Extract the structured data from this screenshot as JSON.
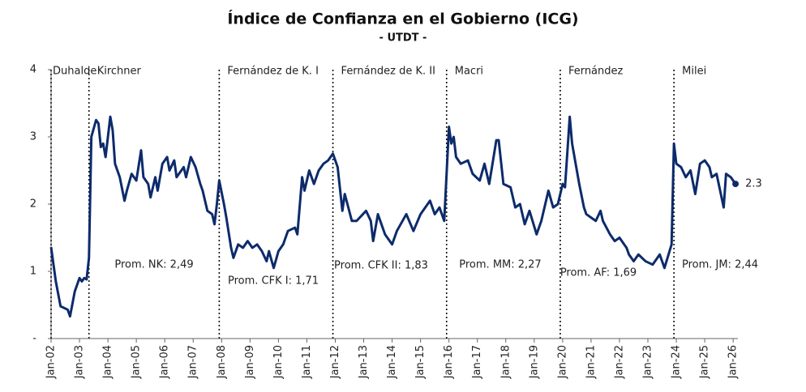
{
  "chart_data": {
    "type": "line",
    "title": "Índice de Confianza en el Gobierno (ICG)",
    "subtitle": "- UTDT -",
    "color": "#0d2b6b",
    "x": [
      "2002-01",
      "2002-03",
      "2002-05",
      "2002-08",
      "2002-09",
      "2002-11",
      "2003-01",
      "2003-02",
      "2003-03",
      "2003-04",
      "2003-05",
      "2003-06",
      "2003-08",
      "2003-09",
      "2003-10",
      "2003-11",
      "2003-12",
      "2004-02",
      "2004-03",
      "2004-04",
      "2004-06",
      "2004-08",
      "2004-09",
      "2004-11",
      "2005-01",
      "2005-03",
      "2005-04",
      "2005-06",
      "2005-07",
      "2005-09",
      "2005-10",
      "2005-12",
      "2006-02",
      "2006-03",
      "2006-05",
      "2006-06",
      "2006-09",
      "2006-10",
      "2006-12",
      "2007-02",
      "2007-04",
      "2007-05",
      "2007-06",
      "2007-07",
      "2007-09",
      "2007-10",
      "2007-11",
      "2007-12",
      "2008-02",
      "2008-03",
      "2008-05",
      "2008-06",
      "2008-08",
      "2008-10",
      "2008-12",
      "2009-02",
      "2009-04",
      "2009-06",
      "2009-08",
      "2009-09",
      "2009-11",
      "2010-01",
      "2010-03",
      "2010-05",
      "2010-08",
      "2010-09",
      "2010-11",
      "2010-12",
      "2011-02",
      "2011-04",
      "2011-06",
      "2011-08",
      "2011-10",
      "2011-12",
      "2012-02",
      "2012-04",
      "2012-05",
      "2012-08",
      "2012-10",
      "2013-02",
      "2013-04",
      "2013-05",
      "2013-07",
      "2013-10",
      "2014-01",
      "2014-03",
      "2014-07",
      "2014-10",
      "2015-01",
      "2015-05",
      "2015-07",
      "2015-09",
      "2015-11",
      "2016-01",
      "2016-02",
      "2016-03",
      "2016-04",
      "2016-06",
      "2016-09",
      "2016-11",
      "2017-02",
      "2017-04",
      "2017-06",
      "2017-09",
      "2017-10",
      "2017-12",
      "2018-03",
      "2018-05",
      "2018-07",
      "2018-09",
      "2018-11",
      "2019-02",
      "2019-04",
      "2019-07",
      "2019-09",
      "2019-11",
      "2020-01",
      "2020-02",
      "2020-04",
      "2020-05",
      "2020-07",
      "2020-08",
      "2020-10",
      "2020-11",
      "2021-01",
      "2021-03",
      "2021-05",
      "2021-06",
      "2021-09",
      "2021-11",
      "2022-01",
      "2022-04",
      "2022-05",
      "2022-07",
      "2022-09",
      "2022-12",
      "2023-03",
      "2023-06",
      "2023-08",
      "2023-11",
      "2023-12",
      "2024-01",
      "2024-03",
      "2024-05",
      "2024-07",
      "2024-09",
      "2024-11",
      "2025-01",
      "2025-03",
      "2025-04",
      "2025-06",
      "2025-09",
      "2025-10",
      "2025-12",
      "2026-02"
    ],
    "values": [
      1.36,
      0.85,
      0.48,
      0.43,
      0.33,
      0.7,
      0.9,
      0.85,
      0.9,
      0.88,
      1.2,
      3.0,
      3.25,
      3.2,
      2.85,
      2.9,
      2.7,
      3.3,
      3.1,
      2.6,
      2.4,
      2.05,
      2.2,
      2.45,
      2.35,
      2.8,
      2.4,
      2.3,
      2.1,
      2.4,
      2.2,
      2.6,
      2.7,
      2.5,
      2.65,
      2.4,
      2.55,
      2.4,
      2.7,
      2.55,
      2.3,
      2.2,
      2.05,
      1.9,
      1.85,
      1.7,
      2.0,
      2.35,
      2.0,
      1.8,
      1.35,
      1.2,
      1.4,
      1.35,
      1.45,
      1.35,
      1.4,
      1.3,
      1.15,
      1.3,
      1.05,
      1.3,
      1.4,
      1.6,
      1.65,
      1.55,
      2.4,
      2.2,
      2.5,
      2.3,
      2.5,
      2.6,
      2.65,
      2.75,
      2.55,
      1.9,
      2.15,
      1.75,
      1.75,
      1.9,
      1.75,
      1.45,
      1.85,
      1.55,
      1.4,
      1.6,
      1.85,
      1.6,
      1.85,
      2.05,
      1.85,
      1.95,
      1.75,
      3.15,
      2.9,
      3.0,
      2.7,
      2.6,
      2.65,
      2.45,
      2.35,
      2.6,
      2.3,
      2.95,
      2.95,
      2.3,
      2.25,
      1.95,
      2.0,
      1.7,
      1.9,
      1.55,
      1.75,
      2.2,
      1.95,
      2.0,
      2.3,
      2.25,
      3.3,
      2.9,
      2.5,
      2.3,
      1.95,
      1.85,
      1.8,
      1.75,
      1.9,
      1.75,
      1.55,
      1.45,
      1.5,
      1.35,
      1.25,
      1.15,
      1.25,
      1.15,
      1.1,
      1.25,
      1.05,
      1.4,
      2.9,
      2.6,
      2.55,
      2.4,
      2.5,
      2.15,
      2.6,
      2.65,
      2.55,
      2.4,
      2.45,
      1.95,
      2.45,
      2.4,
      2.3
    ],
    "end_value_label": true,
    "xlim": [
      "2002-01",
      "2026-03"
    ],
    "xticks": [
      {
        "value": "2002-01",
        "label": "Jan-02"
      },
      {
        "value": "2003-01",
        "label": "Jan-03"
      },
      {
        "value": "2004-01",
        "label": "Jan-04"
      },
      {
        "value": "2005-01",
        "label": "Jan-05"
      },
      {
        "value": "2006-01",
        "label": "Jan-06"
      },
      {
        "value": "2007-01",
        "label": "Jan-07"
      },
      {
        "value": "2008-01",
        "label": "Jan-08"
      },
      {
        "value": "2009-01",
        "label": "Jan-09"
      },
      {
        "value": "2010-01",
        "label": "Jan-10"
      },
      {
        "value": "2011-01",
        "label": "Jan-11"
      },
      {
        "value": "2012-01",
        "label": "Jan-12"
      },
      {
        "value": "2013-01",
        "label": "Jan-13"
      },
      {
        "value": "2014-01",
        "label": "Jan-14"
      },
      {
        "value": "2015-01",
        "label": "Jan-15"
      },
      {
        "value": "2016-01",
        "label": "Jan-16"
      },
      {
        "value": "2017-01",
        "label": "Jan-17"
      },
      {
        "value": "2018-01",
        "label": "Jan-18"
      },
      {
        "value": "2019-01",
        "label": "Jan-19"
      },
      {
        "value": "2020-01",
        "label": "Jan-20"
      },
      {
        "value": "2021-01",
        "label": "Jan-21"
      },
      {
        "value": "2022-01",
        "label": "Jan-22"
      },
      {
        "value": "2023-01",
        "label": "Jan-23"
      },
      {
        "value": "2024-01",
        "label": "Jan-24"
      },
      {
        "value": "2025-01",
        "label": "Jan-25"
      },
      {
        "value": "2026-01",
        "label": "Jan-26"
      }
    ],
    "ylim": [
      0,
      4
    ],
    "yticks": [
      {
        "value": 0,
        "label": "-"
      },
      1,
      2,
      3,
      4
    ],
    "grid": false,
    "periods": [
      {
        "name": "Duhalde",
        "start": "2002-01"
      },
      {
        "name": "Kirchner",
        "start": "2003-05",
        "average_label": "Prom. NK: 2,49"
      },
      {
        "name": "Fernández de K. I",
        "start": "2007-12",
        "average_label": "Prom. CFK I: 1,71"
      },
      {
        "name": "Fernández de K. II",
        "start": "2011-12",
        "average_label": "Prom. CFK II: 1,83"
      },
      {
        "name": "Macri",
        "start": "2015-12",
        "average_label": "Prom. MM: 2,27"
      },
      {
        "name": "Fernández",
        "start": "2019-12",
        "average_label": "Prom. AF: 1,69"
      },
      {
        "name": "Milei",
        "start": "2023-12",
        "average_label": "Prom. JM: 2,44"
      }
    ]
  }
}
